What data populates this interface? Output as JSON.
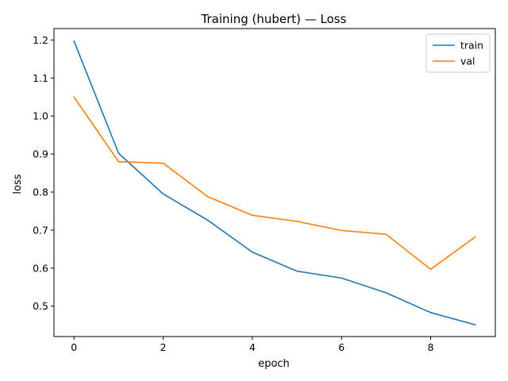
{
  "chart_data": {
    "type": "line",
    "title": "Training (hubert) — Loss",
    "xlabel": "epoch",
    "ylabel": "loss",
    "x": [
      0,
      1,
      2,
      3,
      4,
      5,
      6,
      7,
      8,
      9
    ],
    "xlim": [
      -0.45,
      9.45
    ],
    "ylim": [
      0.42,
      1.23
    ],
    "xticks": [
      0,
      2,
      4,
      6,
      8
    ],
    "xtick_labels": [
      "0",
      "2",
      "4",
      "6",
      "8"
    ],
    "yticks": [
      0.5,
      0.6,
      0.7,
      0.8,
      0.9,
      1.0,
      1.1,
      1.2
    ],
    "ytick_labels": [
      "0.5",
      "0.6",
      "0.7",
      "0.8",
      "0.9",
      "1.0",
      "1.1",
      "1.2"
    ],
    "grid": false,
    "legend_position": "top-right",
    "series": [
      {
        "name": "train",
        "color": "#1f77b4",
        "values": [
          1.197,
          0.902,
          0.795,
          0.726,
          0.642,
          0.592,
          0.574,
          0.535,
          0.483,
          0.451
        ]
      },
      {
        "name": "val",
        "color": "#ff7f0e",
        "values": [
          1.05,
          0.88,
          0.876,
          0.788,
          0.739,
          0.723,
          0.699,
          0.689,
          0.597,
          0.682
        ]
      }
    ]
  }
}
